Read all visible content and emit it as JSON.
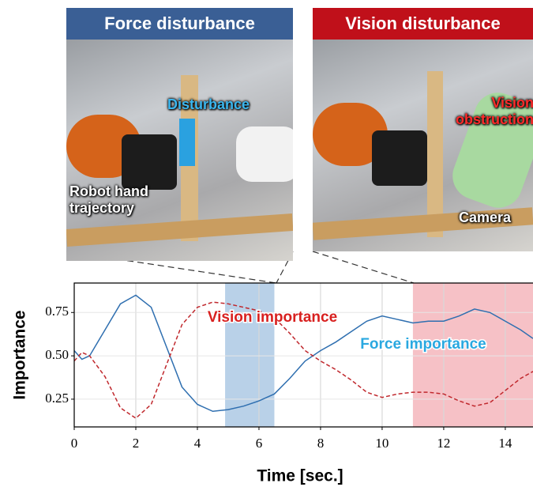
{
  "panels": [
    {
      "title": "Force disturbance",
      "labels": [
        "Disturbance",
        "Robot hand trajectory"
      ]
    },
    {
      "title": "Vision disturbance",
      "labels": [
        "Vision obstruction",
        "Camera"
      ]
    }
  ],
  "chart_data": {
    "type": "line",
    "x": [
      0,
      0.25,
      0.5,
      1,
      1.5,
      2,
      2.5,
      3,
      3.5,
      4,
      4.5,
      5,
      5.5,
      6,
      6.5,
      7,
      7.5,
      8,
      8.5,
      9,
      9.5,
      10,
      10.5,
      11,
      11.5,
      12,
      12.5,
      13,
      13.5,
      14,
      14.5,
      14.9
    ],
    "series": [
      {
        "name": "Force importance",
        "color": "#2f6fb0",
        "dash": false,
        "values": [
          0.53,
          0.48,
          0.5,
          0.65,
          0.8,
          0.85,
          0.78,
          0.55,
          0.32,
          0.22,
          0.18,
          0.19,
          0.21,
          0.24,
          0.28,
          0.37,
          0.47,
          0.53,
          0.58,
          0.64,
          0.7,
          0.73,
          0.71,
          0.69,
          0.7,
          0.7,
          0.73,
          0.77,
          0.75,
          0.7,
          0.65,
          0.6
        ]
      },
      {
        "name": "Vision importance",
        "color": "#c0282d",
        "dash": true,
        "values": [
          0.47,
          0.52,
          0.5,
          0.38,
          0.2,
          0.14,
          0.22,
          0.45,
          0.68,
          0.78,
          0.81,
          0.8,
          0.78,
          0.76,
          0.72,
          0.63,
          0.53,
          0.47,
          0.42,
          0.36,
          0.29,
          0.26,
          0.28,
          0.29,
          0.29,
          0.28,
          0.24,
          0.21,
          0.23,
          0.3,
          0.37,
          0.41
        ]
      }
    ],
    "spans": [
      {
        "start": 4.9,
        "end": 6.5,
        "color": "#b9d1e8"
      },
      {
        "start": 11,
        "end": 14.9,
        "color": "#f6c1c6"
      }
    ],
    "xlabel": "Time [sec.]",
    "ylabel": "Importance",
    "xlim": [
      0,
      14.9
    ],
    "ylim": [
      0.09,
      0.92
    ],
    "xticks": [
      0,
      2,
      4,
      6,
      8,
      10,
      12,
      14
    ],
    "yticks": [
      0.25,
      {
        "value": 0.5,
        "label": "0.50"
      },
      0.75
    ],
    "grid": true
  }
}
